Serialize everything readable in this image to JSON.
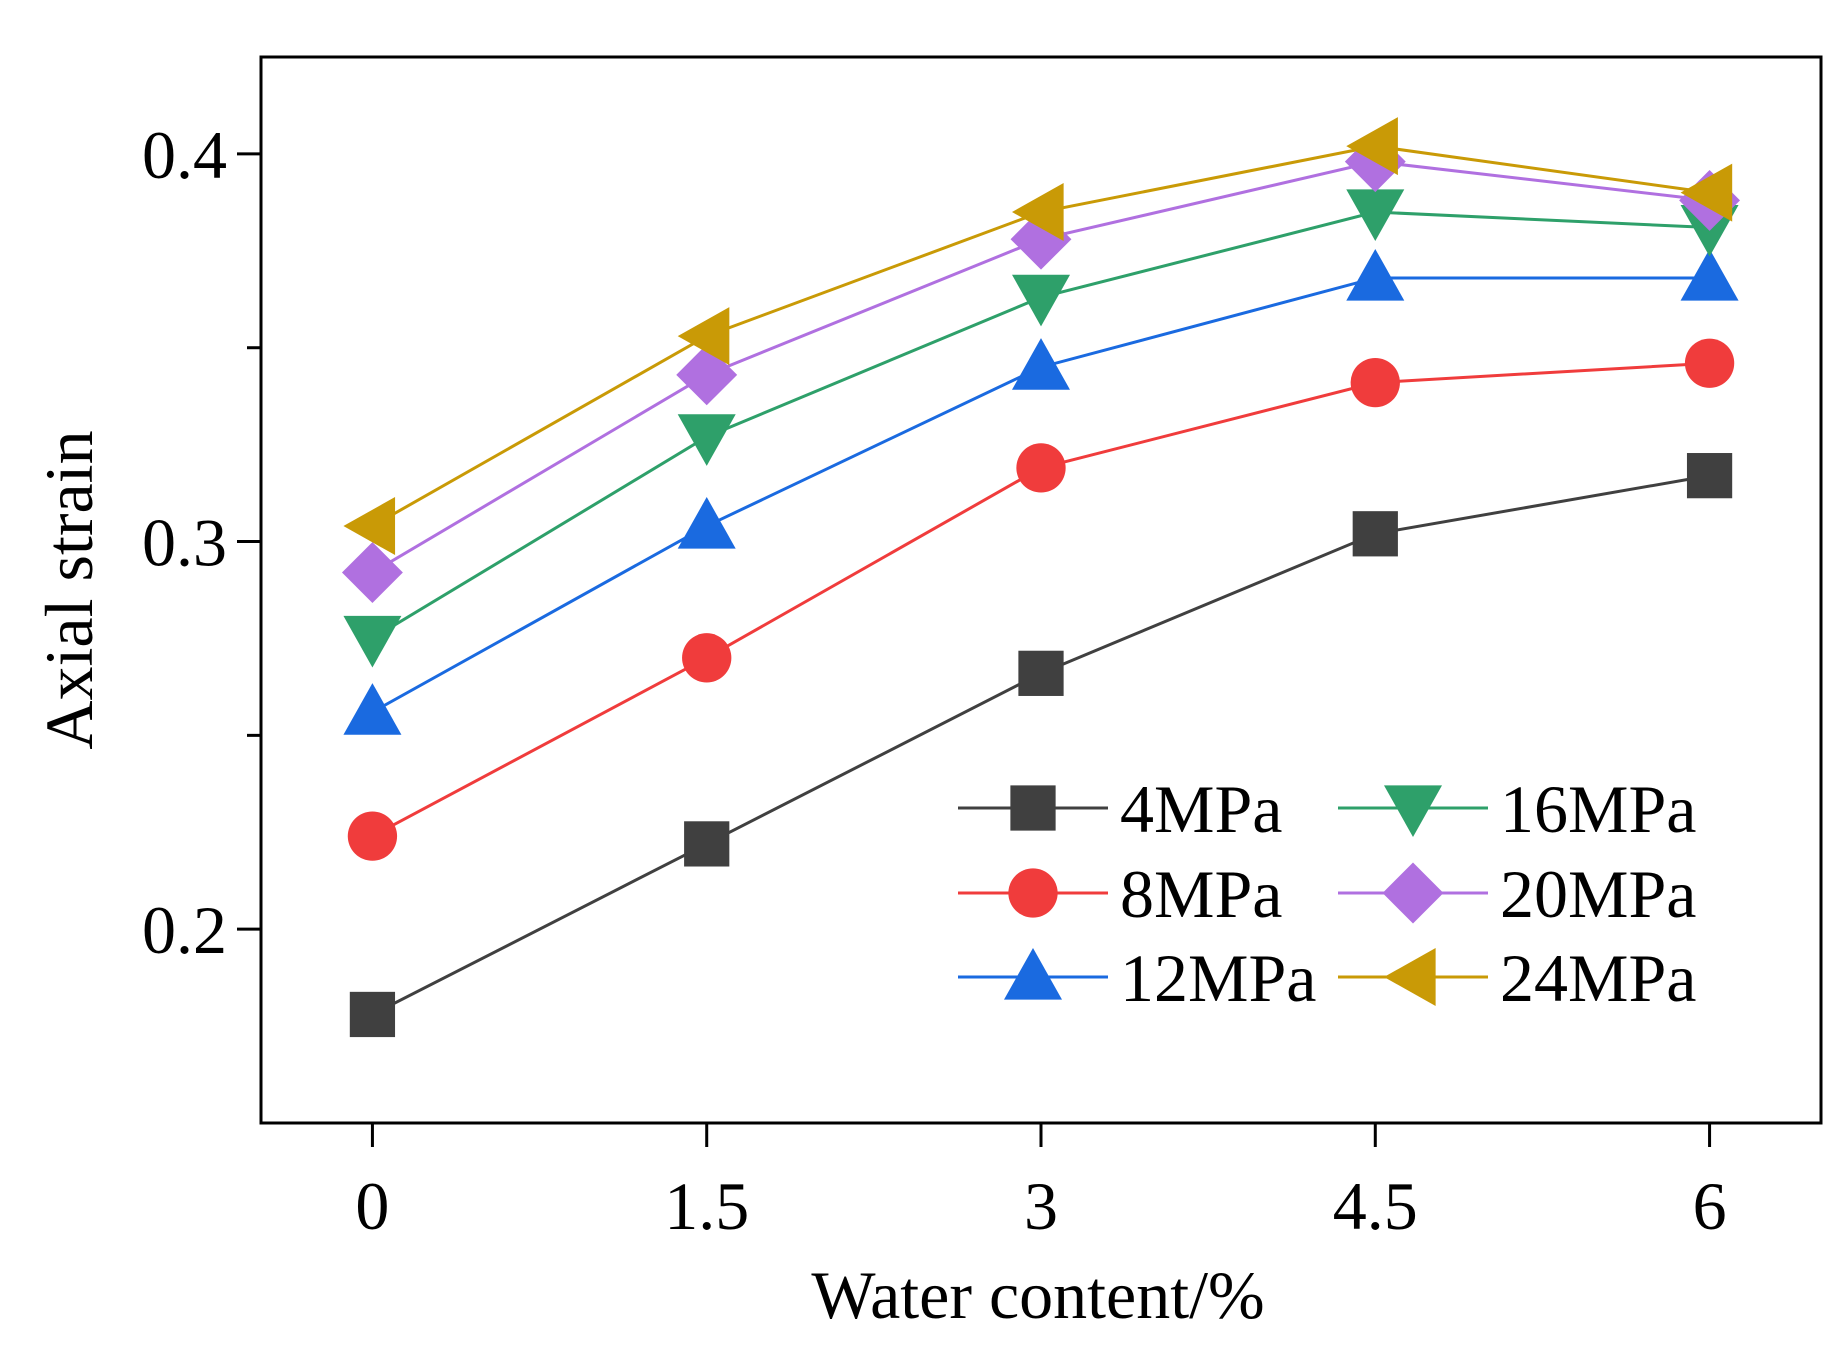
{
  "chart_data": {
    "type": "line",
    "title": "",
    "xlabel": "Water content/%",
    "ylabel": "Axial strain",
    "x": [
      0,
      1.5,
      3,
      4.5,
      6
    ],
    "x_tick_labels": [
      "0",
      "1.5",
      "3",
      "4.5",
      "6"
    ],
    "xlim": [
      -0.5,
      6.5
    ],
    "ylim": [
      0.15,
      0.425
    ],
    "y_ticks_major": [
      0.2,
      0.3,
      0.4
    ],
    "y_tick_labels": [
      "0.2",
      "0.3",
      "0.4"
    ],
    "y_ticks_minor": [
      0.25,
      0.35
    ],
    "grid": false,
    "legend_position": "lower-right",
    "legend_columns": 2,
    "series": [
      {
        "name": "4MPa",
        "color": "#404040",
        "marker": "square",
        "values": [
          0.178,
          0.222,
          0.266,
          0.302,
          0.317
        ]
      },
      {
        "name": "8MPa",
        "color": "#f03c3c",
        "marker": "circle",
        "values": [
          0.224,
          0.27,
          0.319,
          0.341,
          0.346
        ]
      },
      {
        "name": "12MPa",
        "color": "#1a6ae0",
        "marker": "triangle-up",
        "values": [
          0.256,
          0.304,
          0.345,
          0.368,
          0.368
        ]
      },
      {
        "name": "16MPa",
        "color": "#2ea06a",
        "marker": "triangle-down",
        "values": [
          0.275,
          0.327,
          0.363,
          0.385,
          0.381
        ]
      },
      {
        "name": "20MPa",
        "color": "#b070e0",
        "marker": "diamond",
        "values": [
          0.292,
          0.343,
          0.378,
          0.398,
          0.388
        ]
      },
      {
        "name": "24MPa",
        "color": "#c99a06",
        "marker": "triangle-left",
        "values": [
          0.304,
          0.353,
          0.385,
          0.402,
          0.39
        ]
      }
    ]
  }
}
